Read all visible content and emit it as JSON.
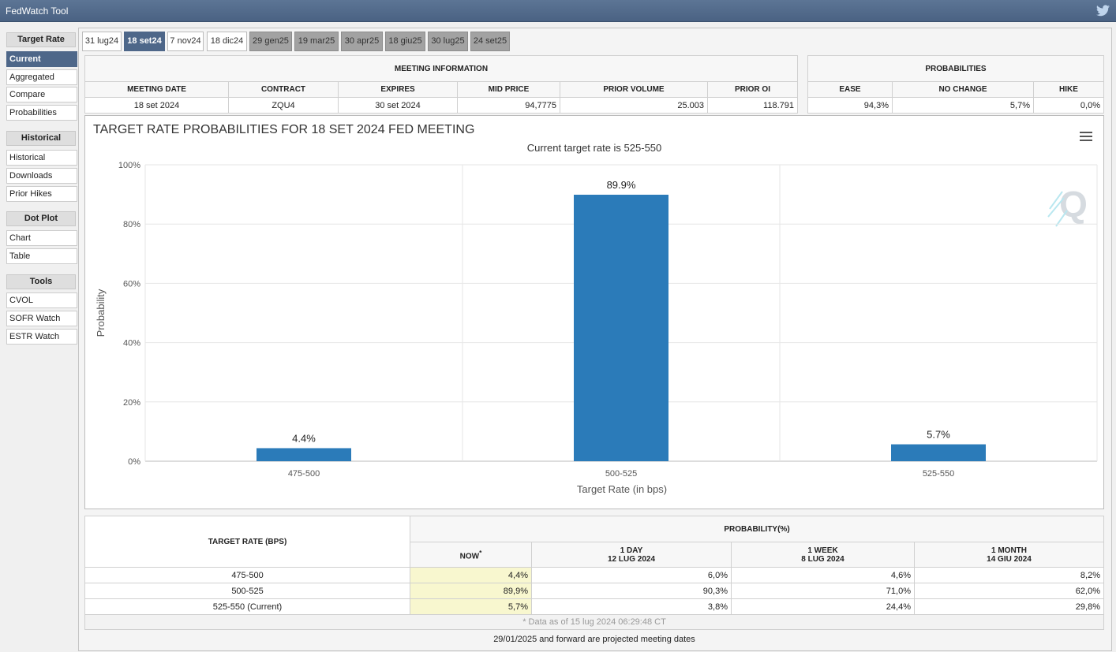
{
  "app": {
    "title": "FedWatch Tool"
  },
  "sidebar": {
    "sections": [
      {
        "heading": "Target Rate",
        "items": [
          "Current",
          "Aggregated",
          "Compare",
          "Probabilities"
        ]
      },
      {
        "heading": "Historical",
        "items": [
          "Historical",
          "Downloads",
          "Prior Hikes"
        ]
      },
      {
        "heading": "Dot Plot",
        "items": [
          "Chart",
          "Table"
        ]
      },
      {
        "heading": "Tools",
        "items": [
          "CVOL",
          "SOFR Watch",
          "ESTR Watch"
        ]
      }
    ],
    "active_item": "Current"
  },
  "tabs": [
    "31 lug24",
    "18 set24",
    "7 nov24",
    "18 dic24",
    "29 gen25",
    "19 mar25",
    "30 apr25",
    "18 giu25",
    "30 lug25",
    "24 set25"
  ],
  "active_tab": "18 set24",
  "meeting_info": {
    "title": "MEETING INFORMATION",
    "headers": [
      "MEETING DATE",
      "CONTRACT",
      "EXPIRES",
      "MID PRICE",
      "PRIOR VOLUME",
      "PRIOR OI"
    ],
    "values": [
      "18 set 2024",
      "ZQU4",
      "30 set 2024",
      "94,7775",
      "25.003",
      "118.791"
    ]
  },
  "probabilities": {
    "title": "PROBABILITIES",
    "headers": [
      "EASE",
      "NO CHANGE",
      "HIKE"
    ],
    "values": [
      "94,3%",
      "5,7%",
      "0,0%"
    ]
  },
  "chart": {
    "title": "TARGET RATE PROBABILITIES FOR 18 SET 2024 FED MEETING",
    "subtitle": "Current target rate is 525-550",
    "menu_icon": "hamburger-menu-icon",
    "watermark_letter": "Q",
    "bar_color": "#2b7bb9"
  },
  "chart_data": {
    "type": "bar",
    "title": "TARGET RATE PROBABILITIES FOR 18 SET 2024 FED MEETING",
    "subtitle": "Current target rate is 525-550",
    "categories": [
      "475-500",
      "500-525",
      "525-550"
    ],
    "values": [
      4.4,
      89.9,
      5.7
    ],
    "data_labels": [
      "4.4%",
      "89.9%",
      "5.7%"
    ],
    "xlabel": "Target Rate (in bps)",
    "ylabel": "Probability",
    "ylim": [
      0,
      100
    ],
    "yticks": [
      "0%",
      "20%",
      "40%",
      "60%",
      "80%",
      "100%"
    ],
    "grid": true
  },
  "prob_table": {
    "col_target": "TARGET RATE (BPS)",
    "group_header": "PROBABILITY(%)",
    "now_header": "NOW",
    "now_marker": "*",
    "periods": [
      {
        "label": "1 DAY",
        "date": "12 LUG 2024"
      },
      {
        "label": "1 WEEK",
        "date": "8 LUG 2024"
      },
      {
        "label": "1 MONTH",
        "date": "14 GIU 2024"
      }
    ],
    "rows": [
      {
        "rate": "475-500",
        "now": "4,4%",
        "day": "6,0%",
        "week": "4,6%",
        "month": "8,2%"
      },
      {
        "rate": "500-525",
        "now": "89,9%",
        "day": "90,3%",
        "week": "71,0%",
        "month": "62,0%"
      },
      {
        "rate": "525-550 (Current)",
        "now": "5,7%",
        "day": "3,8%",
        "week": "24,4%",
        "month": "29,8%"
      }
    ],
    "note": "* Data as of 15 lug 2024 06:29:48 CT"
  },
  "footer": "29/01/2025 and forward are projected meeting dates"
}
